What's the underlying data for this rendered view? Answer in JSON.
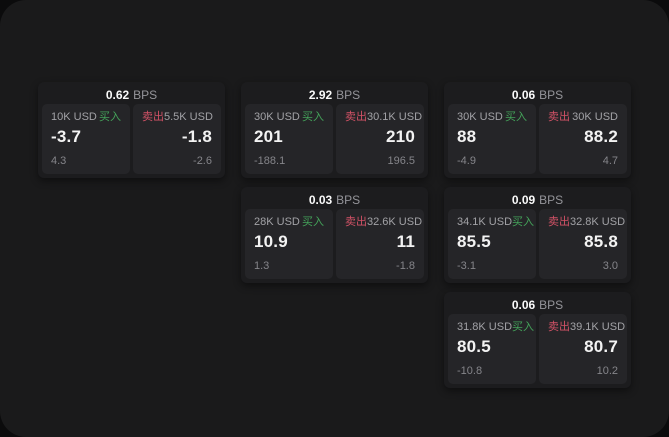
{
  "colors": {
    "page_bg": "#1a1a1b",
    "outer_bg": "#0b0b0c",
    "card_bg": "#1c1c1e",
    "panel_bg": "#252528",
    "buy_green": "#44a35a",
    "sell_red": "#d25266"
  },
  "cards": [
    {
      "bps_value": "0.62",
      "bps_unit": "BPS",
      "buy": {
        "amount": "10K USD",
        "side_label": "买入",
        "price": "-3.7",
        "delta": "4.3"
      },
      "sell": {
        "side_label": "卖出",
        "amount": "5.5K USD",
        "price": "-1.8",
        "delta": "-2.6"
      }
    },
    {
      "bps_value": "2.92",
      "bps_unit": "BPS",
      "buy": {
        "amount": "30K USD",
        "side_label": "买入",
        "price": "201",
        "delta": "-188.1"
      },
      "sell": {
        "side_label": "卖出",
        "amount": "30.1K USD",
        "price": "210",
        "delta": "196.5"
      }
    },
    {
      "bps_value": "0.06",
      "bps_unit": "BPS",
      "buy": {
        "amount": "30K USD",
        "side_label": "买入",
        "price": "88",
        "delta": "-4.9"
      },
      "sell": {
        "side_label": "卖出",
        "amount": "30K USD",
        "price": "88.2",
        "delta": "4.7"
      }
    },
    {
      "bps_value": "0.03",
      "bps_unit": "BPS",
      "buy": {
        "amount": "28K USD",
        "side_label": "买入",
        "price": "10.9",
        "delta": "1.3"
      },
      "sell": {
        "side_label": "卖出",
        "amount": "32.6K USD",
        "price": "11",
        "delta": "-1.8"
      }
    },
    {
      "bps_value": "0.09",
      "bps_unit": "BPS",
      "buy": {
        "amount": "34.1K USD",
        "side_label": "买入",
        "price": "85.5",
        "delta": "-3.1"
      },
      "sell": {
        "side_label": "卖出",
        "amount": "32.8K USD",
        "price": "85.8",
        "delta": "3.0"
      }
    },
    {
      "bps_value": "0.06",
      "bps_unit": "BPS",
      "buy": {
        "amount": "31.8K USD",
        "side_label": "买入",
        "price": "80.5",
        "delta": "-10.8"
      },
      "sell": {
        "side_label": "卖出",
        "amount": "39.1K USD",
        "price": "80.7",
        "delta": "10.2"
      }
    }
  ]
}
